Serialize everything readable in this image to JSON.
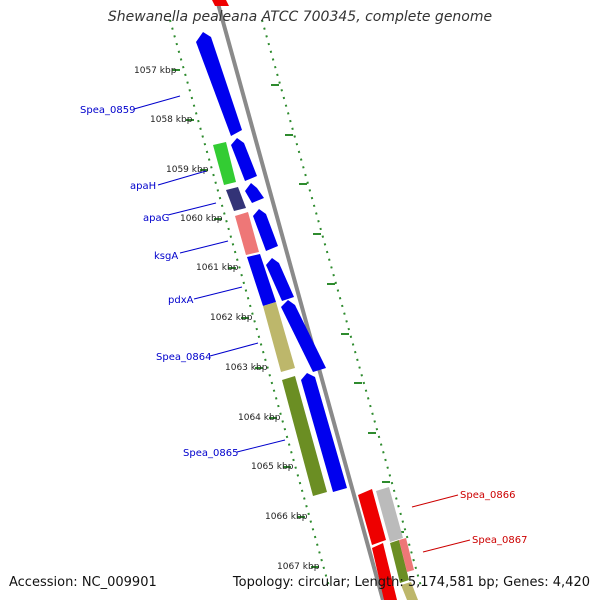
{
  "title": "Shewanella pealeana ATCC 700345, complete genome",
  "footer": {
    "accession": "Accession: NC_009901",
    "topology": "Topology: circular; Length: 5,174,581 bp; Genes: 4,420"
  },
  "ticks": [
    "1057 kbp",
    "1058 kbp",
    "1059 kbp",
    "1060 kbp",
    "1061 kbp",
    "1062 kbp",
    "1063 kbp",
    "1064 kbp",
    "1065 kbp",
    "1066 kbp",
    "1067 kbp"
  ],
  "genes_left": [
    {
      "name": "Spea_0859",
      "color": "#0000cc"
    },
    {
      "name": "apaH",
      "color": "#0000cc"
    },
    {
      "name": "apaG",
      "color": "#0000cc"
    },
    {
      "name": "ksgA",
      "color": "#0000cc"
    },
    {
      "name": "pdxA",
      "color": "#0000cc"
    },
    {
      "name": "Spea_0864",
      "color": "#0000cc"
    },
    {
      "name": "Spea_0865",
      "color": "#0000cc"
    }
  ],
  "genes_right": [
    {
      "name": "Spea_0866",
      "color": "#cc0000"
    },
    {
      "name": "Spea_0867",
      "color": "#cc0000"
    }
  ]
}
